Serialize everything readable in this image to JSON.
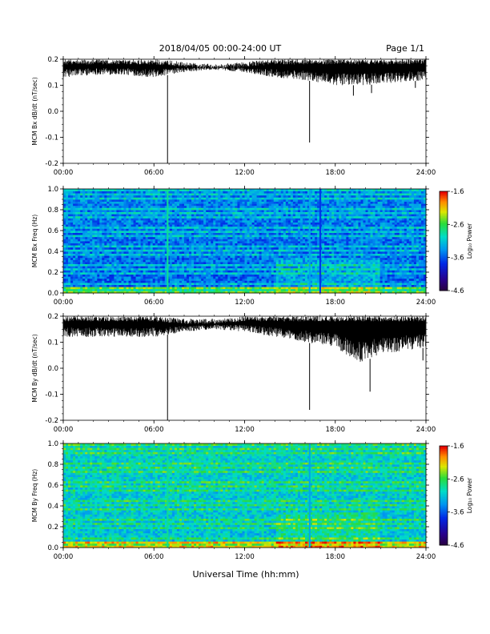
{
  "header": {
    "title": "2018/04/05  00:00-24:00 UT",
    "page": "Page 1/1"
  },
  "x_axis_label": "Universal Time (hh:mm)",
  "chart_data": [
    {
      "type": "line",
      "ylabel": "MCM Bx dB/dt (nT/sec)",
      "xlim": [
        0,
        24
      ],
      "ylim": [
        -0.2,
        0.2
      ],
      "x_ticks": [
        "00:00",
        "06:00",
        "12:00",
        "18:00",
        "24:00"
      ],
      "y_ticks": [
        "0.2",
        "0.1",
        "0.0",
        "-0.1",
        "-0.2"
      ],
      "envelope": [
        {
          "x": 0,
          "min": 0.13,
          "max": 0.2
        },
        {
          "x": 2,
          "min": 0.14,
          "max": 0.2
        },
        {
          "x": 4,
          "min": 0.14,
          "max": 0.2
        },
        {
          "x": 6,
          "min": 0.13,
          "max": 0.2
        },
        {
          "x": 8,
          "min": 0.15,
          "max": 0.19
        },
        {
          "x": 10,
          "min": 0.16,
          "max": 0.18
        },
        {
          "x": 12,
          "min": 0.15,
          "max": 0.19
        },
        {
          "x": 14,
          "min": 0.13,
          "max": 0.2
        },
        {
          "x": 16,
          "min": 0.12,
          "max": 0.2
        },
        {
          "x": 18,
          "min": 0.1,
          "max": 0.2
        },
        {
          "x": 20,
          "min": 0.1,
          "max": 0.2
        },
        {
          "x": 22,
          "min": 0.11,
          "max": 0.2
        },
        {
          "x": 24,
          "min": 0.12,
          "max": 0.2
        }
      ],
      "spikes": [
        {
          "x": 6.9,
          "y": -0.2
        },
        {
          "x": 16.3,
          "y": -0.12
        },
        {
          "x": 19.2,
          "y": 0.06
        },
        {
          "x": 20.4,
          "y": 0.07
        },
        {
          "x": 23.3,
          "y": 0.09
        }
      ]
    },
    {
      "type": "heatmap",
      "ylabel": "MCM Bx Freq (Hz)",
      "xlim": [
        0,
        24
      ],
      "ylim": [
        0,
        1
      ],
      "x_ticks": [
        "00:00",
        "06:00",
        "12:00",
        "18:00",
        "24:00"
      ],
      "y_ticks": [
        "1.0",
        "0.8",
        "0.6",
        "0.4",
        "0.2",
        "0.0"
      ],
      "colorbar": {
        "label": "Log₁₀ Power",
        "range": [
          -4.6,
          -1.6
        ],
        "ticks": [
          "-1.6",
          "-2.6",
          "-3.6",
          "-4.6"
        ]
      },
      "vertical_events": [
        {
          "x": 6.9,
          "level": 0.6
        },
        {
          "x": 16.3,
          "level": 0.45
        },
        {
          "x": 17.0,
          "level": 0.3
        }
      ],
      "harmonic_spacing_hz": 0.045
    },
    {
      "type": "line",
      "ylabel": "MCM By dB/dt (nT/sec)",
      "xlim": [
        0,
        24
      ],
      "ylim": [
        -0.2,
        0.2
      ],
      "x_ticks": [
        "00:00",
        "06:00",
        "12:00",
        "18:00",
        "24:00"
      ],
      "y_ticks": [
        "0.2",
        "0.1",
        "0.0",
        "-0.1",
        "-0.2"
      ],
      "envelope": [
        {
          "x": 0,
          "min": 0.12,
          "max": 0.2
        },
        {
          "x": 2,
          "min": 0.12,
          "max": 0.2
        },
        {
          "x": 4,
          "min": 0.12,
          "max": 0.2
        },
        {
          "x": 6,
          "min": 0.12,
          "max": 0.2
        },
        {
          "x": 8,
          "min": 0.14,
          "max": 0.19
        },
        {
          "x": 10,
          "min": 0.15,
          "max": 0.19
        },
        {
          "x": 12,
          "min": 0.14,
          "max": 0.2
        },
        {
          "x": 14,
          "min": 0.12,
          "max": 0.2
        },
        {
          "x": 16,
          "min": 0.1,
          "max": 0.2
        },
        {
          "x": 18,
          "min": 0.08,
          "max": 0.2
        },
        {
          "x": 19.5,
          "min": 0.02,
          "max": 0.2
        },
        {
          "x": 21,
          "min": 0.05,
          "max": 0.2
        },
        {
          "x": 24,
          "min": 0.08,
          "max": 0.2
        }
      ],
      "spikes": [
        {
          "x": 6.9,
          "y": -0.2
        },
        {
          "x": 16.3,
          "y": -0.16
        },
        {
          "x": 20.3,
          "y": -0.09
        },
        {
          "x": 23.8,
          "y": 0.03
        }
      ]
    },
    {
      "type": "heatmap",
      "ylabel": "MCM By Freq (Hz)",
      "xlim": [
        0,
        24
      ],
      "ylim": [
        0,
        1
      ],
      "x_ticks": [
        "00:00",
        "06:00",
        "12:00",
        "18:00",
        "24:00"
      ],
      "y_ticks": [
        "1.0",
        "0.8",
        "0.6",
        "0.4",
        "0.2",
        "0.0"
      ],
      "colorbar": {
        "label": "Log₁₀ Power",
        "range": [
          -4.6,
          -1.6
        ],
        "ticks": [
          "-1.6",
          "-2.6",
          "-3.6",
          "-4.6"
        ]
      },
      "vertical_events": [
        {
          "x": 6.9,
          "level": 0.6
        },
        {
          "x": 16.3,
          "level": 0.45
        }
      ],
      "harmonic_spacing_hz": 0.045
    }
  ]
}
